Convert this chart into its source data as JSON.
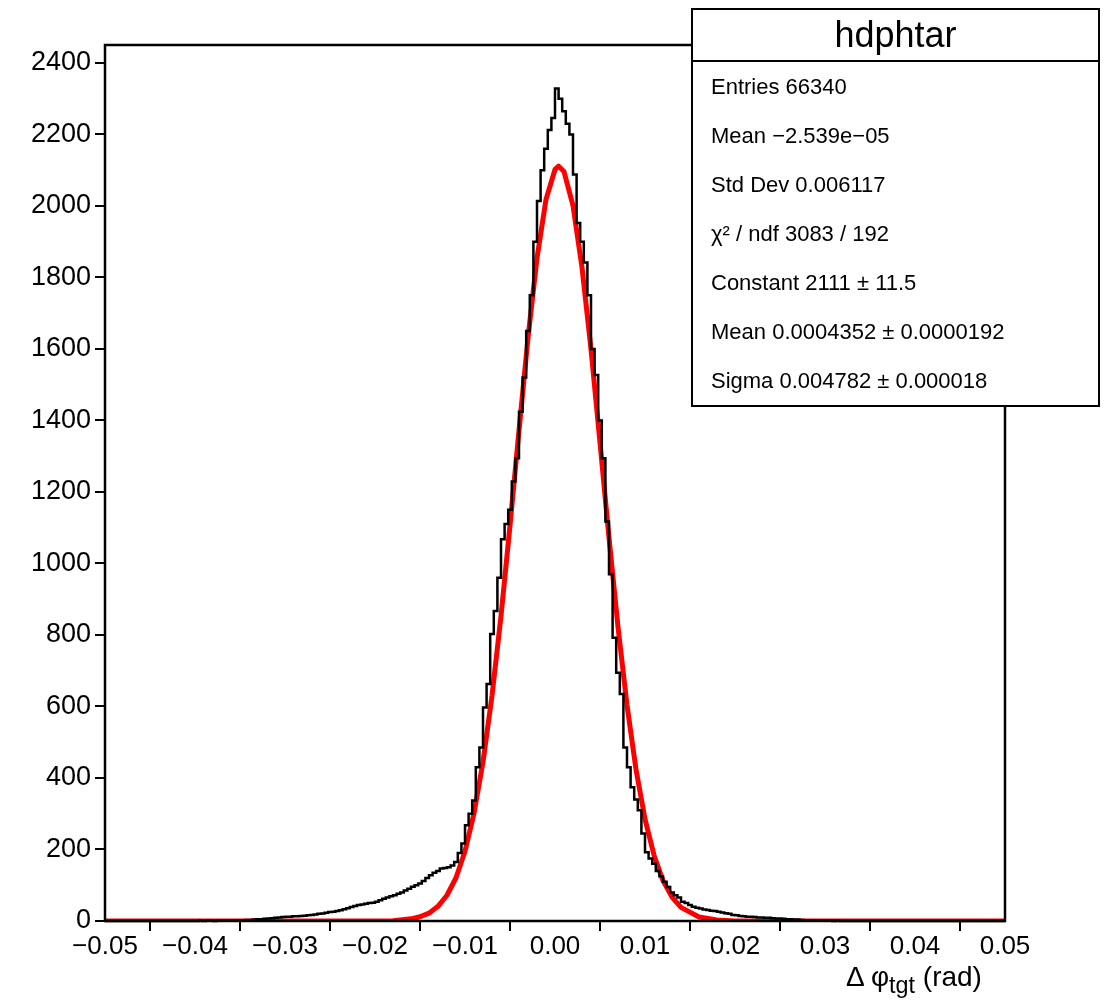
{
  "chart_data": {
    "type": "histogram",
    "title": "hdphtar",
    "xlabel": "Δ φ$_{tgt}$ (rad)",
    "annotations": [
      "Entries 66340",
      "Mean −2.539e−05",
      "Std Dev 0.006117",
      "χ² / ndf 3083 / 192",
      "Constant 2111 ± 11.5",
      "Mean 0.0004352 ± 0.0000192",
      "Sigma 0.004782 ± 0.000018"
    ],
    "color": "#000000",
    "bins": [
      -0.05,
      -0.0496,
      -0.0492,
      -0.0488,
      -0.0484,
      -0.048,
      -0.0476,
      -0.0472,
      -0.0468,
      -0.0464,
      -0.046,
      -0.0456,
      -0.0452,
      -0.0448,
      -0.0444,
      -0.044,
      -0.0436,
      -0.0432,
      -0.0428,
      -0.0424,
      -0.042,
      -0.0416,
      -0.0412,
      -0.0408,
      -0.0404,
      -0.04,
      -0.0396,
      -0.0392,
      -0.0388,
      -0.0384,
      -0.038,
      -0.0376,
      -0.0372,
      -0.0368,
      -0.0364,
      -0.036,
      -0.0356,
      -0.0352,
      -0.0348,
      -0.0344,
      -0.034,
      -0.0336,
      -0.0332,
      -0.0328,
      -0.0324,
      -0.032,
      -0.0316,
      -0.0312,
      -0.0308,
      -0.0304,
      -0.03,
      -0.0296,
      -0.0292,
      -0.0288,
      -0.0284,
      -0.028,
      -0.0276,
      -0.0272,
      -0.0268,
      -0.0264,
      -0.026,
      -0.0256,
      -0.0252,
      -0.0248,
      -0.0244,
      -0.024,
      -0.0236,
      -0.0232,
      -0.0228,
      -0.0224,
      -0.022,
      -0.0216,
      -0.0212,
      -0.0208,
      -0.0204,
      -0.02,
      -0.0196,
      -0.0192,
      -0.0188,
      -0.0184,
      -0.018,
      -0.0176,
      -0.0172,
      -0.0168,
      -0.0164,
      -0.016,
      -0.0156,
      -0.0152,
      -0.0148,
      -0.0144,
      -0.014,
      -0.0136,
      -0.0132,
      -0.0128,
      -0.0124,
      -0.012,
      -0.0116,
      -0.0112,
      -0.0108,
      -0.0104,
      -0.01,
      -0.0096,
      -0.0092,
      -0.0088,
      -0.0084,
      -0.008,
      -0.0076,
      -0.0072,
      -0.0068,
      -0.0064,
      -0.006,
      -0.0056,
      -0.0052,
      -0.0048,
      -0.0044,
      -0.004,
      -0.0036,
      -0.0032,
      -0.0028,
      -0.0024,
      -0.002,
      -0.0016,
      -0.0012,
      -0.0008,
      -0.0004,
      0,
      0.0004,
      0.0008,
      0.0012,
      0.0016,
      0.002,
      0.0024,
      0.0028,
      0.0032,
      0.0036,
      0.004,
      0.0044,
      0.0048,
      0.0052,
      0.0056,
      0.006,
      0.0064,
      0.0068,
      0.0072,
      0.0076,
      0.008,
      0.0084,
      0.0088,
      0.0092,
      0.0096,
      0.01,
      0.0104,
      0.0108,
      0.0112,
      0.0116,
      0.012,
      0.0124,
      0.0128,
      0.0132,
      0.0136,
      0.014,
      0.0144,
      0.0148,
      0.0152,
      0.0156,
      0.016,
      0.0164,
      0.0168,
      0.0172,
      0.0176,
      0.018,
      0.0184,
      0.0188,
      0.0192,
      0.0196,
      0.02,
      0.0204,
      0.0208,
      0.0212,
      0.0216,
      0.022,
      0.0224,
      0.0228,
      0.0232,
      0.0236,
      0.024,
      0.0244,
      0.0248,
      0.0252,
      0.0256,
      0.026,
      0.0264,
      0.0268,
      0.0272,
      0.0276,
      0.028,
      0.0284,
      0.0288,
      0.0292,
      0.0296,
      0.03,
      0.0304,
      0.0308,
      0.0312,
      0.0316,
      0.032,
      0.0324,
      0.0328,
      0.0332,
      0.0336,
      0.034,
      0.0344,
      0.0348,
      0.0352,
      0.0356,
      0.036,
      0.0364,
      0.0368,
      0.0372,
      0.0376,
      0.038,
      0.0384,
      0.0388,
      0.0392,
      0.0396,
      0.04,
      0.0404,
      0.0408,
      0.0412,
      0.0416,
      0.042,
      0.0424,
      0.0428,
      0.0432,
      0.0436,
      0.044,
      0.0444,
      0.0448,
      0.0452,
      0.0456,
      0.046,
      0.0464,
      0.0468,
      0.0472,
      0.0476,
      0.048,
      0.0484,
      0.0488,
      0.0492,
      0.0496,
      0.05
    ],
    "values": [
      0,
      0,
      0,
      0,
      0,
      0,
      0,
      0,
      0,
      0,
      0,
      0,
      0,
      0,
      0,
      0,
      0,
      0,
      0,
      0,
      0,
      0,
      0,
      0,
      0,
      0,
      1,
      0,
      1,
      1,
      0,
      1,
      1,
      1,
      1,
      1,
      2,
      2,
      2,
      3,
      3,
      4,
      5,
      5,
      6,
      7,
      8,
      9,
      10,
      11,
      12,
      12,
      13,
      13,
      14,
      15,
      16,
      17,
      18,
      20,
      21,
      23,
      25,
      26,
      28,
      30,
      33,
      36,
      39,
      42,
      45,
      46,
      48,
      50,
      51,
      54,
      58,
      62,
      66,
      69,
      72,
      76,
      80,
      85,
      90,
      96,
      100,
      105,
      112,
      120,
      128,
      135,
      140,
      147,
      148,
      150,
      155,
      165,
      190,
      217,
      268,
      300,
      337,
      430,
      485,
      597,
      663,
      803,
      867,
      960,
      1068,
      1110,
      1150,
      1229,
      1294,
      1424,
      1520,
      1650,
      1750,
      1900,
      2014,
      2100,
      2160,
      2212,
      2246,
      2328,
      2300,
      2265,
      2230,
      2200,
      2088,
      1952,
      1900,
      1842,
      1750,
      1600,
      1527,
      1400,
      1294,
      1117,
      970,
      792,
      694,
      635,
      485,
      430,
      374,
      340,
      310,
      245,
      192,
      175,
      160,
      140,
      125,
      110,
      95,
      80,
      72,
      66,
      54,
      50,
      45,
      40,
      37,
      35,
      32,
      31,
      29,
      28,
      26,
      24,
      22,
      20,
      17,
      16,
      14,
      13,
      12,
      12,
      11,
      10,
      10,
      9,
      9,
      8,
      7,
      7,
      6,
      5,
      5,
      4,
      4,
      3,
      2,
      2,
      2,
      1,
      1,
      1,
      1,
      1,
      0,
      1,
      0,
      0,
      0,
      0,
      0,
      0,
      0,
      0,
      0,
      0,
      0,
      0,
      0,
      0,
      0,
      0,
      0,
      0,
      0,
      0,
      0,
      0,
      0,
      0,
      0,
      0,
      0,
      0,
      0,
      0,
      0,
      0,
      0,
      0,
      0,
      0,
      0,
      0,
      0,
      0,
      0,
      0,
      0,
      0,
      0,
      0
    ],
    "series": [
      {
        "type": "line",
        "color": "#ff0000",
        "line_style": "solid",
        "marker": "none",
        "x": [
          -0.05,
          -0.02,
          -0.018,
          -0.016,
          -0.015,
          -0.014,
          -0.013,
          -0.012,
          -0.011,
          -0.01,
          -0.009,
          -0.008,
          -0.007,
          -0.006,
          -0.005,
          -0.004,
          -0.003,
          -0.002,
          -0.001,
          0,
          0.0004,
          0.001,
          0.002,
          0.003,
          0.004,
          0.005,
          0.006,
          0.007,
          0.008,
          0.009,
          0.01,
          0.011,
          0.012,
          0.013,
          0.014,
          0.016,
          0.018,
          0.02,
          0.05
        ],
        "values": [
          0,
          0,
          1,
          6,
          12,
          22,
          41,
          72,
          121,
          195,
          301,
          445,
          630,
          853,
          1106,
          1372,
          1631,
          1854,
          2018,
          2102,
          2111,
          2096,
          2001,
          1828,
          1599,
          1338,
          1072,
          822,
          604,
          424,
          285,
          184,
          113,
          67,
          38,
          11,
          3,
          0,
          0
        ]
      }
    ],
    "xlim": [
      -0.05,
      0.05
    ],
    "xticks": [
      {
        "value": -0.05,
        "label": "−0.05"
      },
      {
        "value": -0.04,
        "label": "−0.04"
      },
      {
        "value": -0.03,
        "label": "−0.03"
      },
      {
        "value": -0.02,
        "label": "−0.02"
      },
      {
        "value": -0.01,
        "label": "−0.01"
      },
      {
        "value": 0,
        "label": "0.00"
      },
      {
        "value": 0.01,
        "label": "0.01"
      },
      {
        "value": 0.02,
        "label": "0.02"
      },
      {
        "value": 0.03,
        "label": "0.03"
      },
      {
        "value": 0.04,
        "label": "0.04"
      },
      {
        "value": 0.05,
        "label": "0.05"
      }
    ],
    "ylim": [
      0,
      2450
    ],
    "yticks": [
      0,
      200,
      400,
      600,
      800,
      1000,
      1200,
      1400,
      1600,
      1800,
      2000,
      2200,
      2400
    ],
    "grid": false,
    "legend": false
  }
}
